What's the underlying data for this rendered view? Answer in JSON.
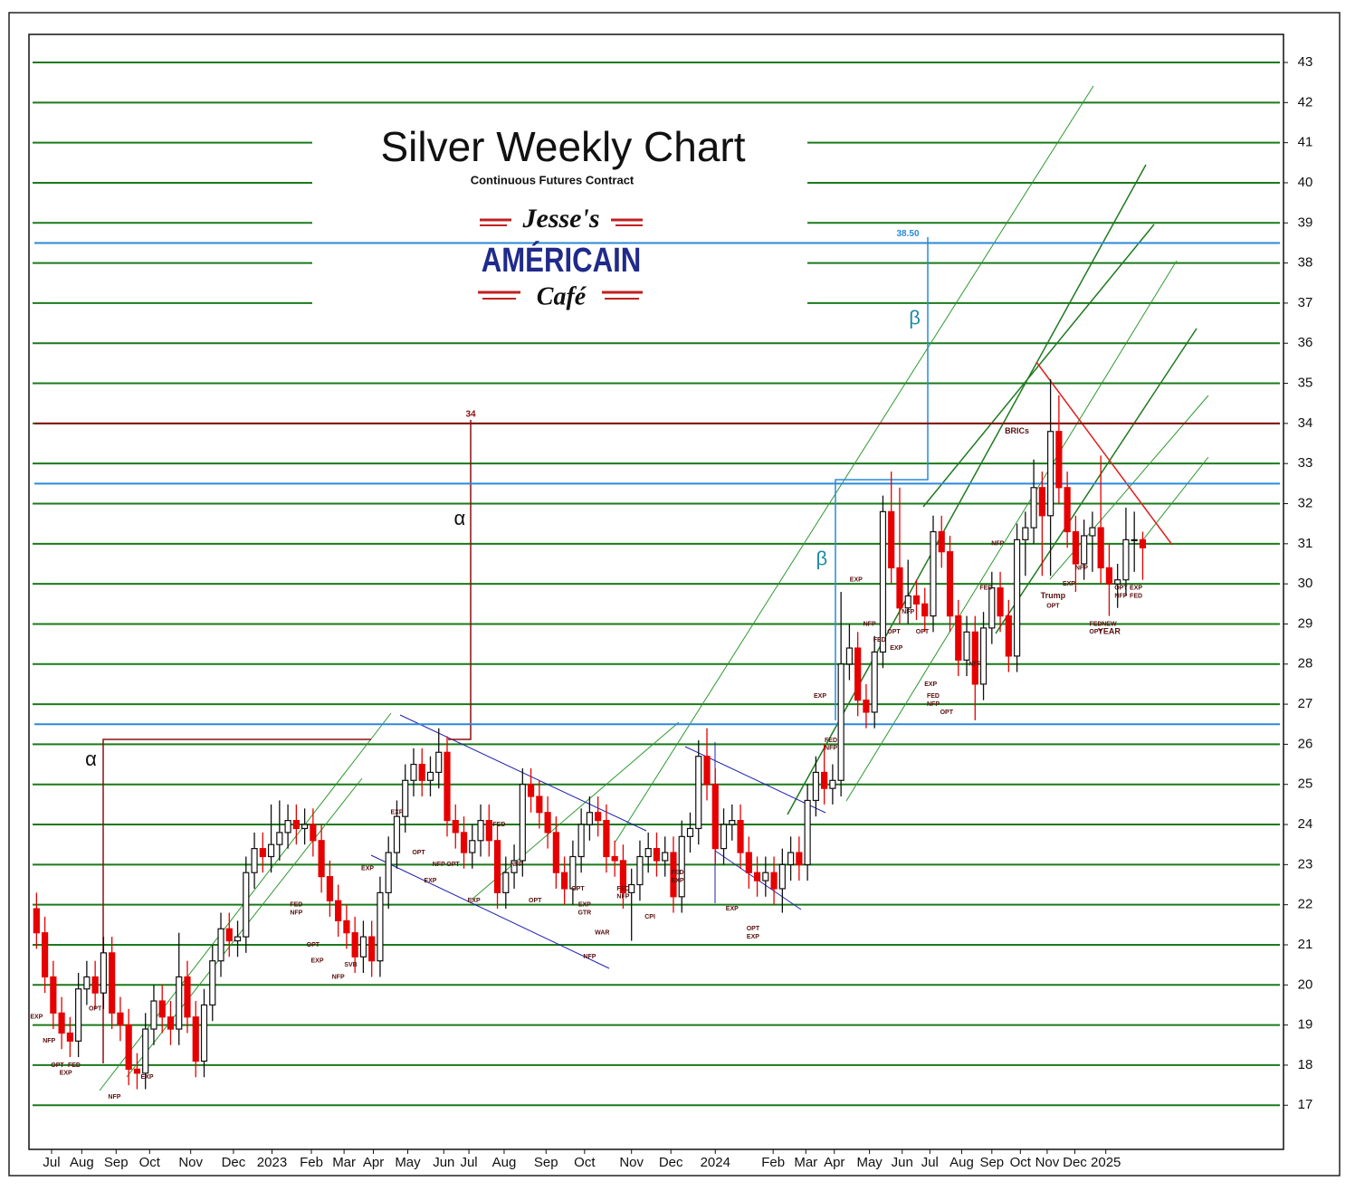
{
  "chart_data": {
    "type": "candlestick",
    "title": "Silver Weekly Chart",
    "subtitle": "Continuous Futures Contract",
    "logo": {
      "top": "Jesse's",
      "middle": "AMÉRICAIN",
      "bottom": "Café"
    },
    "up_color": "#ffffff",
    "down_color": "#e60000",
    "grid": true,
    "grid_color": "#1a7a1a",
    "xlim": [
      -0.9,
      148.8
    ],
    "ylim": [
      15.9,
      43.7
    ],
    "yticks": [
      17,
      18,
      19,
      20,
      21,
      22,
      23,
      24,
      25,
      26,
      27,
      28,
      29,
      30,
      31,
      32,
      33,
      34,
      35,
      36,
      37,
      38,
      39,
      40,
      41,
      42,
      43
    ],
    "xticks": [
      {
        "value": 1.8,
        "label": "Jul"
      },
      {
        "value": 5.4,
        "label": "Aug"
      },
      {
        "value": 9.5,
        "label": "Sep"
      },
      {
        "value": 13.5,
        "label": "Oct"
      },
      {
        "value": 18.4,
        "label": "Nov"
      },
      {
        "value": 23.5,
        "label": "Dec"
      },
      {
        "value": 28.1,
        "label": "2023"
      },
      {
        "value": 32.8,
        "label": "Feb"
      },
      {
        "value": 36.7,
        "label": "Mar"
      },
      {
        "value": 40.2,
        "label": "Apr"
      },
      {
        "value": 44.3,
        "label": "May"
      },
      {
        "value": 48.6,
        "label": "Jun"
      },
      {
        "value": 51.6,
        "label": "Jul"
      },
      {
        "value": 55.8,
        "label": "Aug"
      },
      {
        "value": 60.8,
        "label": "Sep"
      },
      {
        "value": 65.4,
        "label": "Oct"
      },
      {
        "value": 71.0,
        "label": "Nov"
      },
      {
        "value": 75.7,
        "label": "Dec"
      },
      {
        "value": 81.0,
        "label": "2024"
      },
      {
        "value": 87.9,
        "label": "Feb"
      },
      {
        "value": 91.8,
        "label": "Mar"
      },
      {
        "value": 95.2,
        "label": "Apr"
      },
      {
        "value": 99.4,
        "label": "May"
      },
      {
        "value": 103.3,
        "label": "Jun"
      },
      {
        "value": 106.6,
        "label": "Jul"
      },
      {
        "value": 110.4,
        "label": "Aug"
      },
      {
        "value": 114.0,
        "label": "Sep"
      },
      {
        "value": 117.4,
        "label": "Oct"
      },
      {
        "value": 120.6,
        "label": "Nov"
      },
      {
        "value": 123.9,
        "label": "Dec"
      },
      {
        "value": 127.6,
        "label": "2025"
      }
    ],
    "open": [
      21.9,
      21.3,
      20.2,
      19.3,
      18.8,
      18.6,
      19.9,
      20.2,
      19.8,
      20.8,
      19.3,
      19.0,
      17.9,
      17.8,
      18.9,
      19.6,
      19.2,
      18.9,
      20.2,
      19.2,
      18.1,
      19.5,
      20.6,
      21.4,
      21.1,
      21.2,
      22.8,
      23.4,
      23.2,
      23.5,
      23.8,
      24.1,
      23.9,
      24.0,
      23.6,
      22.7,
      22.1,
      21.6,
      21.3,
      20.7,
      21.2,
      20.6,
      22.3,
      23.3,
      24.2,
      25.1,
      25.5,
      25.1,
      25.3,
      25.8,
      24.1,
      23.8,
      23.3,
      23.6,
      24.1,
      23.6,
      22.3,
      22.8,
      23.1,
      25.0,
      24.7,
      24.3,
      23.8,
      22.8,
      22.4,
      23.2,
      24.0,
      24.3,
      24.1,
      23.2,
      23.1,
      22.3,
      22.5,
      23.2,
      23.4,
      23.1,
      23.3,
      22.2,
      23.7,
      23.9,
      25.7,
      25.0,
      23.4,
      24.0,
      24.1,
      23.3,
      22.8,
      22.6,
      22.8,
      22.4,
      23.0,
      23.3,
      23.0,
      24.6,
      25.3,
      24.9,
      25.1,
      28.0,
      28.4,
      27.1,
      26.8,
      28.3,
      31.8,
      30.4,
      29.4,
      29.7,
      29.5,
      29.2,
      31.3,
      30.8,
      29.2,
      28.1,
      28.8,
      27.5,
      28.9,
      29.9,
      29.2,
      28.2,
      31.1,
      31.4,
      32.4,
      31.7,
      33.8,
      32.4,
      31.3,
      30.5,
      31.2,
      31.4,
      30.4,
      30.0,
      30.1,
      31.1,
      31.1
    ],
    "high": [
      22.3,
      21.7,
      20.6,
      19.7,
      19.2,
      20.3,
      20.6,
      20.6,
      21.2,
      21.2,
      19.7,
      19.4,
      18.3,
      19.3,
      20.0,
      20.0,
      19.6,
      21.3,
      20.6,
      19.6,
      19.9,
      21.0,
      21.8,
      21.8,
      21.6,
      23.2,
      23.8,
      23.8,
      24.5,
      24.6,
      24.5,
      24.5,
      24.4,
      24.4,
      24.0,
      23.1,
      22.5,
      22.0,
      21.7,
      21.6,
      21.6,
      22.7,
      23.7,
      24.6,
      25.5,
      25.9,
      25.9,
      25.7,
      26.4,
      26.2,
      24.5,
      24.2,
      24.0,
      24.5,
      24.5,
      24.0,
      23.2,
      23.5,
      25.4,
      25.4,
      25.1,
      24.7,
      24.2,
      23.2,
      23.6,
      24.4,
      24.7,
      24.7,
      24.5,
      23.6,
      23.5,
      22.9,
      23.6,
      23.8,
      23.8,
      23.7,
      23.7,
      24.1,
      24.3,
      26.1,
      26.4,
      25.4,
      24.4,
      24.5,
      24.5,
      23.7,
      23.2,
      23.2,
      23.2,
      23.4,
      23.7,
      23.7,
      25.0,
      25.7,
      26.0,
      25.5,
      29.8,
      29.0,
      28.8,
      27.5,
      28.7,
      32.2,
      32.8,
      32.4,
      30.6,
      30.1,
      29.9,
      31.7,
      31.7,
      31.2,
      29.6,
      29.2,
      29.2,
      29.3,
      30.3,
      30.3,
      29.6,
      31.5,
      31.8,
      33.1,
      32.8,
      35.1,
      34.7,
      32.8,
      31.7,
      31.6,
      31.8,
      33.2,
      31.0,
      30.5,
      31.9,
      31.8,
      31.3
    ],
    "low": [
      20.9,
      19.8,
      18.9,
      18.4,
      18.2,
      18.2,
      19.5,
      19.4,
      19.4,
      18.9,
      18.6,
      17.5,
      17.4,
      17.4,
      18.5,
      18.8,
      18.5,
      18.5,
      18.8,
      17.7,
      17.7,
      19.1,
      20.2,
      20.7,
      20.7,
      20.8,
      22.4,
      22.8,
      22.8,
      23.1,
      23.4,
      23.5,
      23.5,
      23.2,
      22.3,
      21.7,
      21.2,
      20.9,
      20.3,
      20.3,
      20.2,
      20.2,
      21.9,
      22.9,
      23.8,
      24.7,
      24.7,
      24.7,
      24.9,
      23.7,
      23.4,
      22.9,
      22.9,
      23.2,
      23.2,
      21.9,
      21.9,
      22.4,
      22.7,
      24.3,
      23.9,
      23.4,
      22.4,
      22.0,
      22.0,
      22.8,
      23.6,
      23.7,
      22.8,
      22.7,
      21.9,
      21.1,
      22.1,
      22.8,
      22.7,
      22.7,
      21.8,
      21.8,
      23.3,
      23.5,
      24.6,
      23.0,
      23.0,
      23.6,
      22.9,
      22.4,
      22.2,
      22.2,
      22.0,
      21.8,
      22.6,
      22.6,
      22.6,
      24.2,
      24.5,
      24.5,
      24.7,
      27.6,
      26.7,
      26.4,
      26.4,
      27.9,
      30.0,
      29.0,
      29.0,
      29.1,
      28.8,
      28.8,
      30.4,
      28.8,
      27.7,
      27.7,
      26.6,
      27.1,
      28.5,
      28.8,
      27.8,
      27.8,
      30.2,
      31.0,
      30.2,
      30.2,
      32.0,
      30.9,
      29.8,
      30.1,
      30.3,
      30.0,
      29.2,
      29.4,
      29.7,
      30.3,
      30.1
    ],
    "close": [
      21.3,
      20.2,
      19.3,
      18.8,
      18.6,
      19.9,
      20.2,
      19.8,
      20.8,
      19.3,
      19.0,
      17.9,
      17.8,
      18.9,
      19.6,
      19.2,
      18.9,
      20.2,
      19.2,
      18.1,
      19.5,
      20.6,
      21.4,
      21.1,
      21.2,
      22.8,
      23.4,
      23.2,
      23.5,
      23.8,
      24.1,
      23.9,
      24.0,
      23.6,
      22.7,
      22.1,
      21.6,
      21.3,
      20.7,
      21.2,
      20.6,
      22.3,
      23.3,
      24.2,
      25.1,
      25.5,
      25.1,
      25.3,
      25.8,
      24.1,
      23.8,
      23.3,
      23.6,
      24.1,
      23.6,
      22.3,
      22.8,
      23.1,
      25.0,
      24.7,
      24.3,
      23.8,
      22.8,
      22.4,
      23.2,
      24.0,
      24.3,
      24.1,
      23.2,
      23.1,
      22.3,
      22.5,
      23.2,
      23.4,
      23.1,
      23.3,
      22.2,
      23.7,
      23.9,
      25.7,
      25.0,
      23.4,
      24.0,
      24.1,
      23.3,
      22.8,
      22.6,
      22.8,
      22.4,
      23.0,
      23.3,
      23.0,
      24.6,
      25.3,
      24.9,
      25.1,
      28.0,
      28.4,
      27.1,
      26.8,
      28.3,
      31.8,
      30.4,
      29.4,
      29.7,
      29.5,
      29.2,
      31.3,
      30.8,
      29.2,
      28.1,
      28.8,
      27.5,
      28.9,
      29.9,
      29.2,
      28.2,
      31.1,
      31.4,
      32.4,
      31.7,
      33.8,
      32.4,
      31.3,
      30.5,
      31.2,
      31.4,
      30.4,
      30.0,
      30.1,
      31.1,
      31.1,
      30.9
    ],
    "reference_lines": [
      {
        "value": 34,
        "label": "34",
        "color": "#8b1010"
      },
      {
        "value": 38.5,
        "label": "38.50",
        "color": "#2a8ad8"
      },
      {
        "value": 32.5,
        "color": "#2a8ad8"
      },
      {
        "value": 26.5,
        "color": "#2a8ad8"
      }
    ],
    "greek_labels": [
      {
        "text": "α",
        "x": 50.5,
        "y": 31.6,
        "color": "#111111"
      },
      {
        "text": "α",
        "x": 6.5,
        "y": 25.6,
        "color": "#111111"
      },
      {
        "text": "β",
        "x": 104.8,
        "y": 36.6,
        "color": "#1e8aa8"
      },
      {
        "text": "β",
        "x": 93.7,
        "y": 30.6,
        "color": "#1e8aa8"
      }
    ],
    "annotations": [
      {
        "text": "EXP",
        "x": 0,
        "y": 19.2
      },
      {
        "text": "NFP",
        "x": 1.5,
        "y": 18.6
      },
      {
        "text": "OPT",
        "x": 2.5,
        "y": 18.0
      },
      {
        "text": "EXP",
        "x": 3.5,
        "y": 17.8
      },
      {
        "text": "FED",
        "x": 4.5,
        "y": 18.0
      },
      {
        "text": "OPT",
        "x": 7,
        "y": 19.4
      },
      {
        "text": "NFP",
        "x": 9.3,
        "y": 17.2
      },
      {
        "text": "EXP",
        "x": 13.2,
        "y": 17.7
      },
      {
        "text": "FED",
        "x": 31,
        "y": 22.0
      },
      {
        "text": "NFP",
        "x": 31,
        "y": 21.8
      },
      {
        "text": "OPT",
        "x": 33,
        "y": 21.0
      },
      {
        "text": "EXP",
        "x": 33.5,
        "y": 20.6
      },
      {
        "text": "NFP",
        "x": 36,
        "y": 20.2
      },
      {
        "text": "SVB",
        "x": 37.5,
        "y": 20.5
      },
      {
        "text": "EXP",
        "x": 39.5,
        "y": 22.9
      },
      {
        "text": "EXP",
        "x": 43,
        "y": 24.3
      },
      {
        "text": "OPT",
        "x": 45.6,
        "y": 23.3
      },
      {
        "text": "EXP",
        "x": 47,
        "y": 22.6
      },
      {
        "text": "NFP",
        "x": 48,
        "y": 23.0
      },
      {
        "text": "OPT",
        "x": 49.7,
        "y": 23.0
      },
      {
        "text": "EXP",
        "x": 52.2,
        "y": 22.1
      },
      {
        "text": "FED",
        "x": 55.2,
        "y": 24.0
      },
      {
        "text": "NFP",
        "x": 57.3,
        "y": 23.0
      },
      {
        "text": "OPT",
        "x": 59.5,
        "y": 22.1
      },
      {
        "text": "OPT",
        "x": 64.6,
        "y": 22.4
      },
      {
        "text": "EXP",
        "x": 65.4,
        "y": 22.0
      },
      {
        "text": "GTR",
        "x": 65.4,
        "y": 21.8
      },
      {
        "text": "NFP",
        "x": 66,
        "y": 20.7
      },
      {
        "text": "WAR",
        "x": 67.5,
        "y": 21.3
      },
      {
        "text": "FED",
        "x": 70,
        "y": 22.4
      },
      {
        "text": "NFP",
        "x": 70,
        "y": 22.2
      },
      {
        "text": "CPI",
        "x": 73.2,
        "y": 21.7
      },
      {
        "text": "FED",
        "x": 76.5,
        "y": 22.8
      },
      {
        "text": "EXP",
        "x": 76.5,
        "y": 22.6
      },
      {
        "text": "EXP",
        "x": 83,
        "y": 21.9
      },
      {
        "text": "OPT",
        "x": 85.5,
        "y": 21.4
      },
      {
        "text": "EXP",
        "x": 85.5,
        "y": 21.2
      },
      {
        "text": "EXP",
        "x": 93.5,
        "y": 27.2
      },
      {
        "text": "FED",
        "x": 94.8,
        "y": 26.1
      },
      {
        "text": "NFP",
        "x": 94.8,
        "y": 25.9
      },
      {
        "text": "EXP",
        "x": 97.8,
        "y": 30.1
      },
      {
        "text": "NFP",
        "x": 99.4,
        "y": 29.0
      },
      {
        "text": "FED",
        "x": 100.6,
        "y": 28.6
      },
      {
        "text": "OPT",
        "x": 102.3,
        "y": 28.8
      },
      {
        "text": "EXP",
        "x": 102.6,
        "y": 28.4
      },
      {
        "text": "NFP",
        "x": 104,
        "y": 29.3
      },
      {
        "text": "OPT",
        "x": 105.7,
        "y": 28.8
      },
      {
        "text": "EXP",
        "x": 106.7,
        "y": 27.5
      },
      {
        "text": "FED",
        "x": 107,
        "y": 27.2
      },
      {
        "text": "NFP",
        "x": 107,
        "y": 27.0
      },
      {
        "text": "OPT",
        "x": 108.6,
        "y": 26.8
      },
      {
        "text": "NFP",
        "x": 112,
        "y": 28.0
      },
      {
        "text": "FED",
        "x": 113.3,
        "y": 29.9
      },
      {
        "text": "NFP",
        "x": 114.7,
        "y": 31.0
      },
      {
        "text": "BRICs",
        "x": 117,
        "y": 33.8
      },
      {
        "text": "Trump",
        "x": 121.3,
        "y": 29.7
      },
      {
        "text": "OPT",
        "x": 121.3,
        "y": 29.45
      },
      {
        "text": "EXP",
        "x": 123.2,
        "y": 30.0
      },
      {
        "text": "NFP",
        "x": 124.7,
        "y": 30.4
      },
      {
        "text": "FED",
        "x": 126.4,
        "y": 29.0
      },
      {
        "text": "OPT",
        "x": 126.4,
        "y": 28.8
      },
      {
        "text": "NEW",
        "x": 128,
        "y": 29.0
      },
      {
        "text": "YEAR",
        "x": 128,
        "y": 28.8
      },
      {
        "text": "OPT",
        "x": 129.4,
        "y": 29.9
      },
      {
        "text": "NFP",
        "x": 129.4,
        "y": 29.7
      },
      {
        "text": "EXP",
        "x": 131.2,
        "y": 29.9
      },
      {
        "text": "FED",
        "x": 131.2,
        "y": 29.7
      }
    ]
  }
}
